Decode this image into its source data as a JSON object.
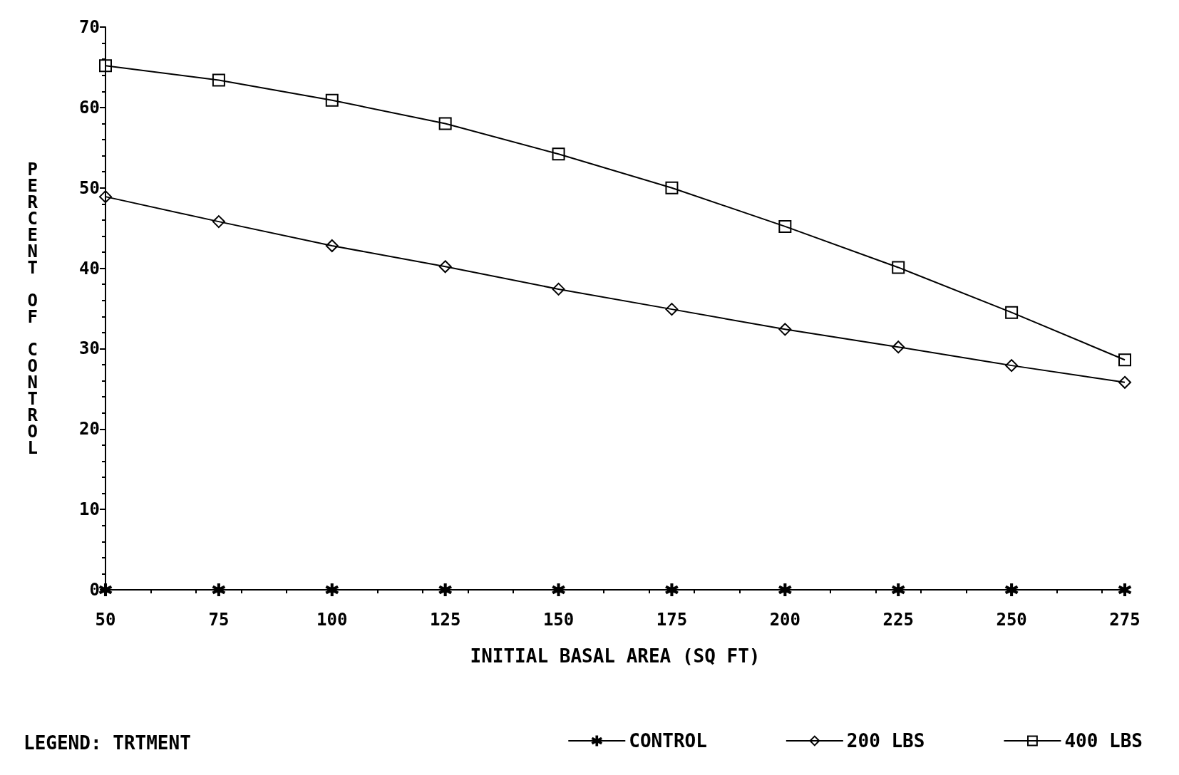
{
  "chart_data": {
    "type": "line",
    "xlabel": "INITIAL BASAL AREA (SQ FT)",
    "ylabel": "PERCENT OF CONTROL",
    "legend_title": "LEGEND: TRTMENT",
    "x": [
      50,
      75,
      100,
      125,
      150,
      175,
      200,
      225,
      250,
      275
    ],
    "series": [
      {
        "name": "CONTROL",
        "color": "#000000",
        "marker": "star",
        "values": [
          0,
          0,
          0,
          0,
          0,
          0,
          0,
          0,
          0,
          0
        ]
      },
      {
        "name": "200 LBS",
        "color": "#000000",
        "marker": "diamond",
        "values": [
          48.9,
          45.8,
          42.8,
          40.2,
          37.4,
          34.9,
          32.4,
          30.2,
          27.9,
          25.8
        ]
      },
      {
        "name": "400 LBS",
        "color": "#000000",
        "marker": "square",
        "values": [
          65.2,
          63.4,
          60.9,
          58.0,
          54.2,
          50.0,
          45.2,
          40.1,
          34.5,
          28.6
        ]
      }
    ],
    "xlim": [
      50,
      275
    ],
    "xticks": [
      50,
      75,
      100,
      125,
      150,
      175,
      200,
      225,
      250,
      275
    ],
    "ylim": [
      0,
      70
    ],
    "yticks": [
      0,
      10,
      20,
      30,
      40,
      50,
      60,
      70
    ],
    "grid": false,
    "legend": "bottom",
    "line_style": "solid"
  }
}
